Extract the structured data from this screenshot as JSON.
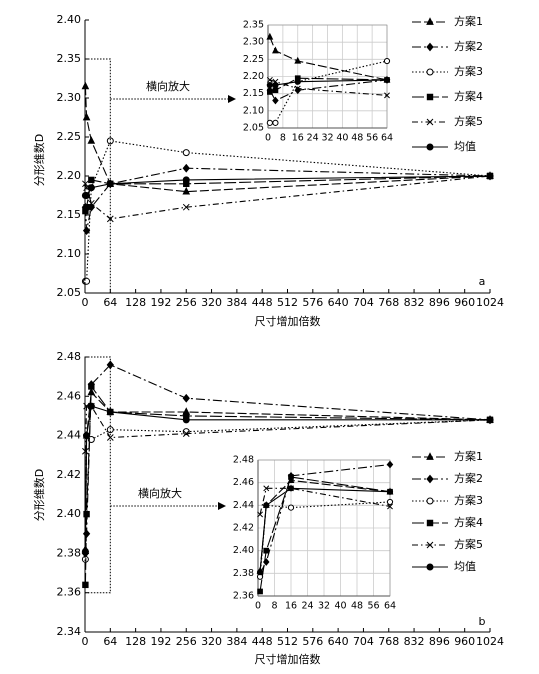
{
  "chart_data": [
    {
      "type": "line",
      "panel_label": "a",
      "ylabel": "分形维数D",
      "xlabel": "尺寸增加倍数",
      "annotation": "横向放大",
      "grid": false,
      "x": [
        1,
        4,
        16,
        64,
        256,
        1024
      ],
      "xlim": [
        0,
        1024
      ],
      "xticks": [
        0,
        64,
        128,
        192,
        256,
        320,
        384,
        448,
        512,
        576,
        640,
        704,
        768,
        832,
        896,
        960,
        1024
      ],
      "ylim": [
        2.05,
        2.4
      ],
      "yticks": [
        {
          "value": 2.05,
          "label": "2.05"
        },
        {
          "value": 2.1,
          "label": "2.10"
        },
        {
          "value": 2.15,
          "label": "2.15"
        },
        {
          "value": 2.2,
          "label": "2.20"
        },
        {
          "value": 2.25,
          "label": "2.25"
        },
        {
          "value": 2.3,
          "label": "2.30"
        },
        {
          "value": 2.35,
          "label": "2.35"
        },
        {
          "value": 2.4,
          "label": "2.40"
        }
      ],
      "series": [
        {
          "name": "方案1",
          "color": "#000000",
          "dash": "9 3",
          "marker": "triangle",
          "values": [
            2.315,
            2.275,
            2.245,
            2.19,
            2.18,
            2.2
          ]
        },
        {
          "name": "方案2",
          "color": "#000000",
          "dash": "9 3 2 3",
          "marker": "diamond",
          "values": [
            2.16,
            2.13,
            2.16,
            2.19,
            2.21,
            2.2
          ]
        },
        {
          "name": "方案3",
          "color": "#000000",
          "dash": "1.5 2",
          "marker": "open-circle",
          "values": [
            2.065,
            2.065,
            2.185,
            2.245,
            2.23,
            2.2
          ]
        },
        {
          "name": "方案4",
          "color": "#000000",
          "dash": "12 3",
          "marker": "square",
          "values": [
            2.155,
            2.16,
            2.195,
            2.19,
            2.19,
            2.2
          ]
        },
        {
          "name": "方案5",
          "color": "#000000",
          "dash": "6 3 1.5 3",
          "marker": "cross",
          "values": [
            2.19,
            2.185,
            2.165,
            2.145,
            2.16,
            2.2
          ]
        },
        {
          "name": "均值",
          "color": "#000000",
          "dash": "none",
          "marker": "circle",
          "values": [
            2.175,
            2.175,
            2.185,
            2.19,
            2.195,
            2.2
          ]
        }
      ],
      "inset": {
        "grid": true,
        "xlim": [
          0,
          64
        ],
        "xticks": [
          0,
          8,
          16,
          24,
          32,
          40,
          48,
          56,
          64
        ],
        "ylim": [
          2.05,
          2.35
        ],
        "yticks": [
          {
            "value": 2.05,
            "label": "2.05"
          },
          {
            "value": 2.1,
            "label": "2.10"
          },
          {
            "value": 2.15,
            "label": "2.15"
          },
          {
            "value": 2.2,
            "label": "2.20"
          },
          {
            "value": 2.25,
            "label": "2.25"
          },
          {
            "value": 2.3,
            "label": "2.30"
          },
          {
            "value": 2.35,
            "label": "2.35"
          }
        ]
      }
    },
    {
      "type": "line",
      "panel_label": "b",
      "ylabel": "分形维数D",
      "xlabel": "尺寸增加倍数",
      "annotation": "横向放大",
      "grid": false,
      "x": [
        1,
        4,
        16,
        64,
        256,
        1024
      ],
      "xlim": [
        0,
        1024
      ],
      "xticks": [
        0,
        64,
        128,
        192,
        256,
        320,
        384,
        448,
        512,
        576,
        640,
        704,
        768,
        832,
        896,
        960,
        1024
      ],
      "ylim": [
        2.34,
        2.48
      ],
      "yticks": [
        2.34,
        2.36,
        2.38,
        {
          "value": 2.4,
          "label": "2.40"
        },
        2.42,
        2.44,
        2.46,
        2.48
      ],
      "series": [
        {
          "name": "方案1",
          "color": "#000000",
          "dash": "9 3",
          "marker": "triangle",
          "values": [
            2.382,
            2.44,
            2.462,
            2.452,
            2.452,
            2.448
          ]
        },
        {
          "name": "方案2",
          "color": "#000000",
          "dash": "9 3 2 3",
          "marker": "diamond",
          "values": [
            2.38,
            2.39,
            2.466,
            2.476,
            2.459,
            2.448
          ]
        },
        {
          "name": "方案3",
          "color": "#000000",
          "dash": "1.5 2",
          "marker": "open-circle",
          "values": [
            2.377,
            2.44,
            2.438,
            2.443,
            2.442,
            2.448
          ]
        },
        {
          "name": "方案4",
          "color": "#000000",
          "dash": "12 3",
          "marker": "square",
          "values": [
            2.364,
            2.4,
            2.465,
            2.452,
            2.45,
            2.448
          ]
        },
        {
          "name": "方案5",
          "color": "#000000",
          "dash": "6 3 1.5 3",
          "marker": "cross",
          "values": [
            2.432,
            2.455,
            2.455,
            2.439,
            2.441,
            2.448
          ]
        },
        {
          "name": "均值",
          "color": "#000000",
          "dash": "none",
          "marker": "circle",
          "values": [
            2.381,
            2.44,
            2.455,
            2.452,
            2.448,
            2.448
          ]
        }
      ],
      "inset": {
        "grid": true,
        "xlim": [
          0,
          64
        ],
        "xticks": [
          0,
          8,
          16,
          24,
          32,
          40,
          48,
          56,
          64
        ],
        "ylim": [
          2.36,
          2.48
        ],
        "yticks": [
          2.36,
          2.38,
          {
            "value": 2.4,
            "label": "2.40"
          },
          2.42,
          2.44,
          2.46,
          2.48
        ]
      }
    }
  ]
}
